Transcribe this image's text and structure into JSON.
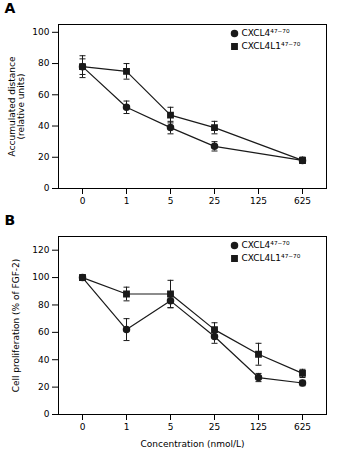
{
  "chart_data": [
    {
      "type": "line",
      "title": "A",
      "categories": [
        "0",
        "1",
        "5",
        "25",
        "125",
        "625"
      ],
      "ylabel": "Accumulated distance\n(relative units)",
      "ylim": [
        0,
        105
      ],
      "yticks": [
        0,
        20,
        40,
        60,
        80,
        100
      ],
      "grid": false,
      "legend": "upper right",
      "series": [
        {
          "name": "CXCL4⁴⁷⁻⁷⁰",
          "color": "#1a1a1a",
          "marker": "circle",
          "values": [
            78,
            52,
            39,
            27,
            null,
            18
          ],
          "errors": [
            5,
            4,
            4,
            3,
            null,
            2
          ]
        },
        {
          "name": "CXCL4L1⁴⁷⁻⁷⁰",
          "color": "#1a1a1a",
          "marker": "square",
          "values": [
            78,
            75,
            47,
            39,
            null,
            18
          ],
          "errors": [
            7,
            5,
            5,
            4,
            null,
            2
          ]
        }
      ]
    },
    {
      "type": "line",
      "title": "B",
      "categories": [
        "0",
        "1",
        "5",
        "25",
        "125",
        "625"
      ],
      "xlabel": "Concentration (nmol/L)",
      "ylabel": "Cell proliferation (% of FGF-2)",
      "ylim": [
        0,
        130
      ],
      "yticks": [
        0,
        20,
        40,
        60,
        80,
        100,
        120
      ],
      "grid": false,
      "legend": "upper right",
      "series": [
        {
          "name": "CXCL4⁴⁷⁻⁷⁰",
          "color": "#1a1a1a",
          "marker": "circle",
          "values": [
            100,
            62,
            83,
            57,
            27,
            23
          ],
          "errors": [
            2,
            8,
            5,
            5,
            3,
            2
          ]
        },
        {
          "name": "CXCL4L1⁴⁷⁻⁷⁰",
          "color": "#1a1a1a",
          "marker": "square",
          "values": [
            100,
            88,
            88,
            62,
            44,
            30
          ],
          "errors": [
            2,
            5,
            10,
            5,
            8,
            3
          ]
        }
      ]
    }
  ]
}
